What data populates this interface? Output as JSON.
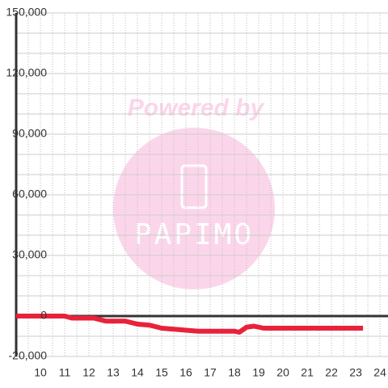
{
  "chart_data": {
    "type": "line",
    "watermark": {
      "line1": "Powered by",
      "line2": "PAPIMO"
    },
    "x": [
      9,
      11,
      11.3,
      12.2,
      12.7,
      13.5,
      14,
      14.5,
      15,
      15.5,
      16,
      16.5,
      17,
      18,
      18.2,
      18.5,
      18.8,
      19.2,
      20,
      23.3
    ],
    "series": [
      {
        "color": "#e8223a",
        "values": [
          0,
          0,
          -1000,
          -1000,
          -2500,
          -2500,
          -4000,
          -4500,
          -6000,
          -6500,
          -7000,
          -7500,
          -7500,
          -7500,
          -8000,
          -5500,
          -5000,
          -6000,
          -6000,
          -6000
        ]
      }
    ],
    "xlim": [
      9,
      24.33
    ],
    "xticks": [
      10,
      11,
      12,
      13,
      14,
      15,
      16,
      17,
      18,
      19,
      20,
      21,
      22,
      23,
      24
    ],
    "ylim": [
      -20000,
      150000
    ],
    "yticks": [
      {
        "value": -20000,
        "label": "-20,000"
      },
      0,
      {
        "value": 30000,
        "label": "30,000"
      },
      {
        "value": 60000,
        "label": "60,000"
      },
      {
        "value": 90000,
        "label": "90,000"
      },
      {
        "value": 120000,
        "label": "120,000"
      },
      {
        "value": 150000,
        "label": "150,000"
      }
    ],
    "grid": true
  }
}
